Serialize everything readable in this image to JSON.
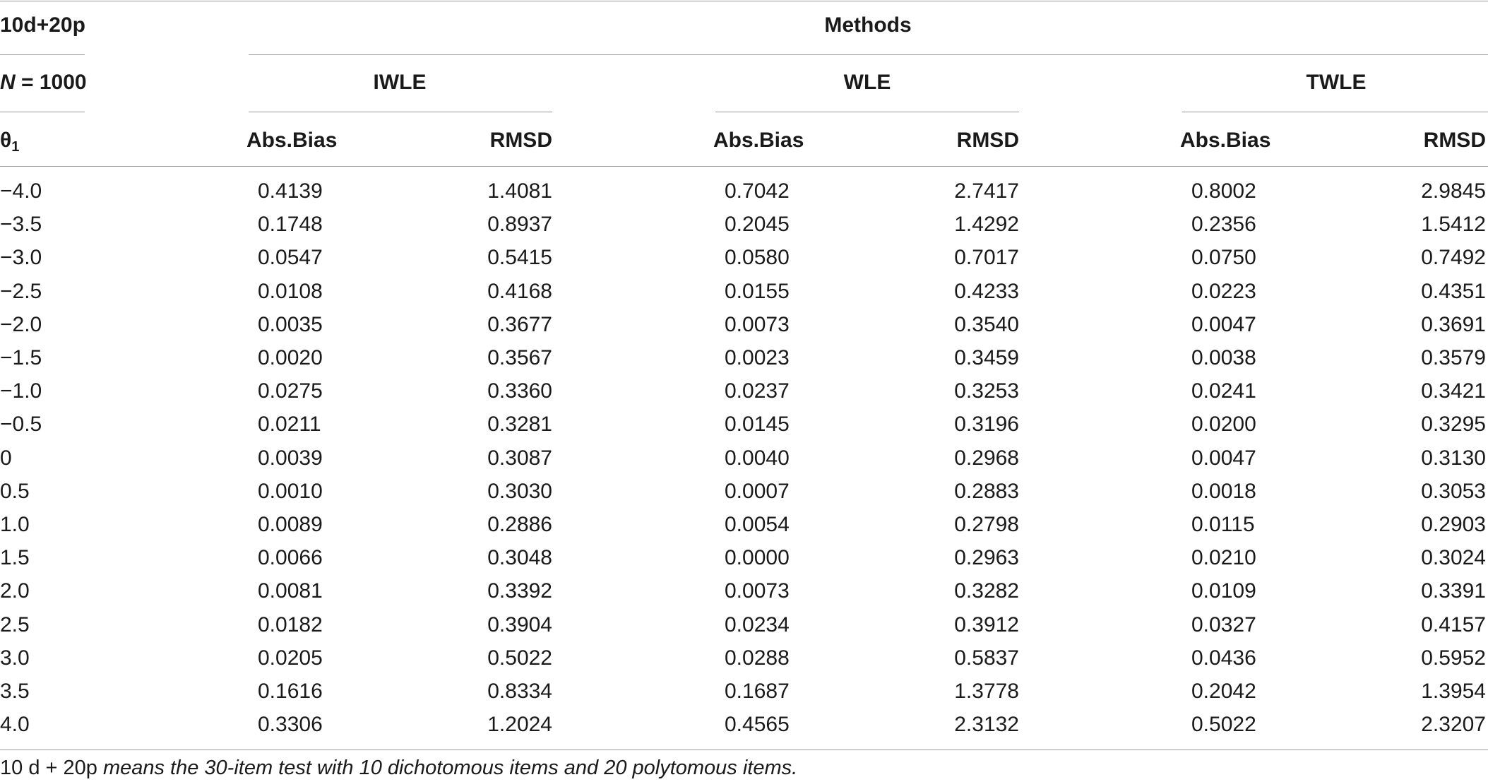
{
  "header": {
    "corner_top": "10d+20p",
    "corner_mid_italic": "N",
    "corner_mid_rest": " = 1000",
    "corner_bottom_symbol": "θ",
    "corner_bottom_sub": "1",
    "methods_label": "Methods",
    "methods": [
      "IWLE",
      "WLE",
      "TWLE"
    ],
    "subcolumns": [
      "Abs.Bias",
      "RMSD"
    ]
  },
  "rows": [
    {
      "theta": "−4.0",
      "values": [
        "0.4139",
        "1.4081",
        "0.7042",
        "2.7417",
        "0.8002",
        "2.9845"
      ]
    },
    {
      "theta": "−3.5",
      "values": [
        "0.1748",
        "0.8937",
        "0.2045",
        "1.4292",
        "0.2356",
        "1.5412"
      ]
    },
    {
      "theta": "−3.0",
      "values": [
        "0.0547",
        "0.5415",
        "0.0580",
        "0.7017",
        "0.0750",
        "0.7492"
      ]
    },
    {
      "theta": "−2.5",
      "values": [
        "0.0108",
        "0.4168",
        "0.0155",
        "0.4233",
        "0.0223",
        "0.4351"
      ]
    },
    {
      "theta": "−2.0",
      "values": [
        "0.0035",
        "0.3677",
        "0.0073",
        "0.3540",
        "0.0047",
        "0.3691"
      ]
    },
    {
      "theta": "−1.5",
      "values": [
        "0.0020",
        "0.3567",
        "0.0023",
        "0.3459",
        "0.0038",
        "0.3579"
      ]
    },
    {
      "theta": "−1.0",
      "values": [
        "0.0275",
        "0.3360",
        "0.0237",
        "0.3253",
        "0.0241",
        "0.3421"
      ]
    },
    {
      "theta": "−0.5",
      "values": [
        "0.0211",
        "0.3281",
        "0.0145",
        "0.3196",
        "0.0200",
        "0.3295"
      ]
    },
    {
      "theta": "0",
      "values": [
        "0.0039",
        "0.3087",
        "0.0040",
        "0.2968",
        "0.0047",
        "0.3130"
      ]
    },
    {
      "theta": "0.5",
      "values": [
        "0.0010",
        "0.3030",
        "0.0007",
        "0.2883",
        "0.0018",
        "0.3053"
      ]
    },
    {
      "theta": "1.0",
      "values": [
        "0.0089",
        "0.2886",
        "0.0054",
        "0.2798",
        "0.0115",
        "0.2903"
      ]
    },
    {
      "theta": "1.5",
      "values": [
        "0.0066",
        "0.3048",
        "0.0000",
        "0.2963",
        "0.0210",
        "0.3024"
      ]
    },
    {
      "theta": "2.0",
      "values": [
        "0.0081",
        "0.3392",
        "0.0073",
        "0.3282",
        "0.0109",
        "0.3391"
      ]
    },
    {
      "theta": "2.5",
      "values": [
        "0.0182",
        "0.3904",
        "0.0234",
        "0.3912",
        "0.0327",
        "0.4157"
      ]
    },
    {
      "theta": "3.0",
      "values": [
        "0.0205",
        "0.5022",
        "0.0288",
        "0.5837",
        "0.0436",
        "0.5952"
      ]
    },
    {
      "theta": "3.5",
      "values": [
        "0.1616",
        "0.8334",
        "0.1687",
        "1.3778",
        "0.2042",
        "1.3954"
      ]
    },
    {
      "theta": "4.0",
      "values": [
        "0.3306",
        "1.2024",
        "0.4565",
        "2.3132",
        "0.5022",
        "2.3207"
      ]
    }
  ],
  "footnote": {
    "prefix": "10 d + 20p",
    "text": " means the 30-item test with 10 dichotomous items and 20 polytomous items."
  }
}
